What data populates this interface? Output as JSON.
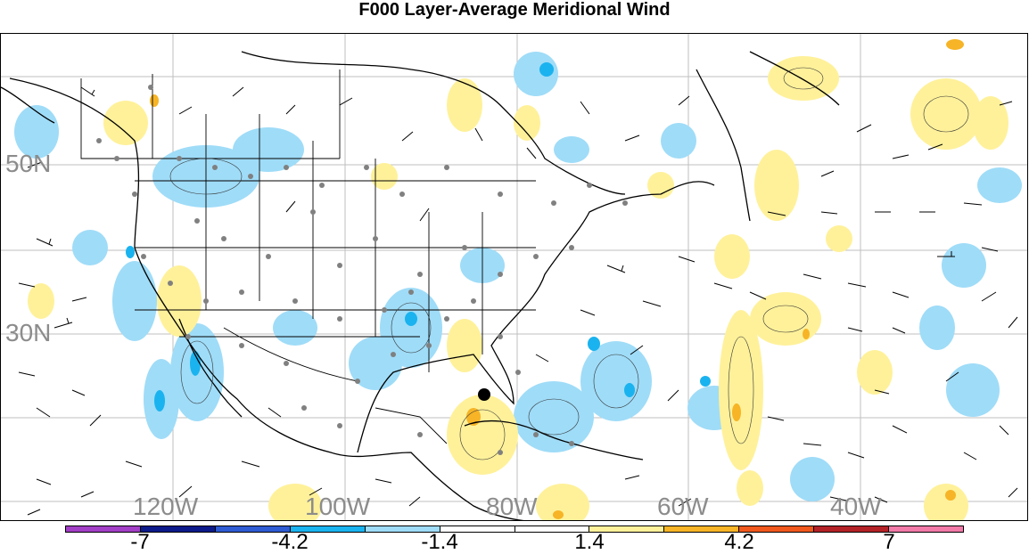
{
  "title": "F000 Layer-Average Meridional Wind",
  "lat_labels": [
    "50N",
    "30N"
  ],
  "lon_labels": [
    "120W",
    "100W",
    "80W",
    "60W",
    "40W"
  ],
  "colorbar": {
    "colors": [
      "#a23fc6",
      "#0c1a8a",
      "#2f5bd3",
      "#1ab3ef",
      "#9fdcf8",
      "#ffffff",
      "#ffffff",
      "#fff19a",
      "#f6b426",
      "#f0581d",
      "#b32227",
      "#f17aa8"
    ],
    "labels": [
      "-7",
      "-4.2",
      "-1.4",
      "1.4",
      "4.2",
      "7"
    ]
  },
  "marker": {
    "name": "black-dot"
  }
}
